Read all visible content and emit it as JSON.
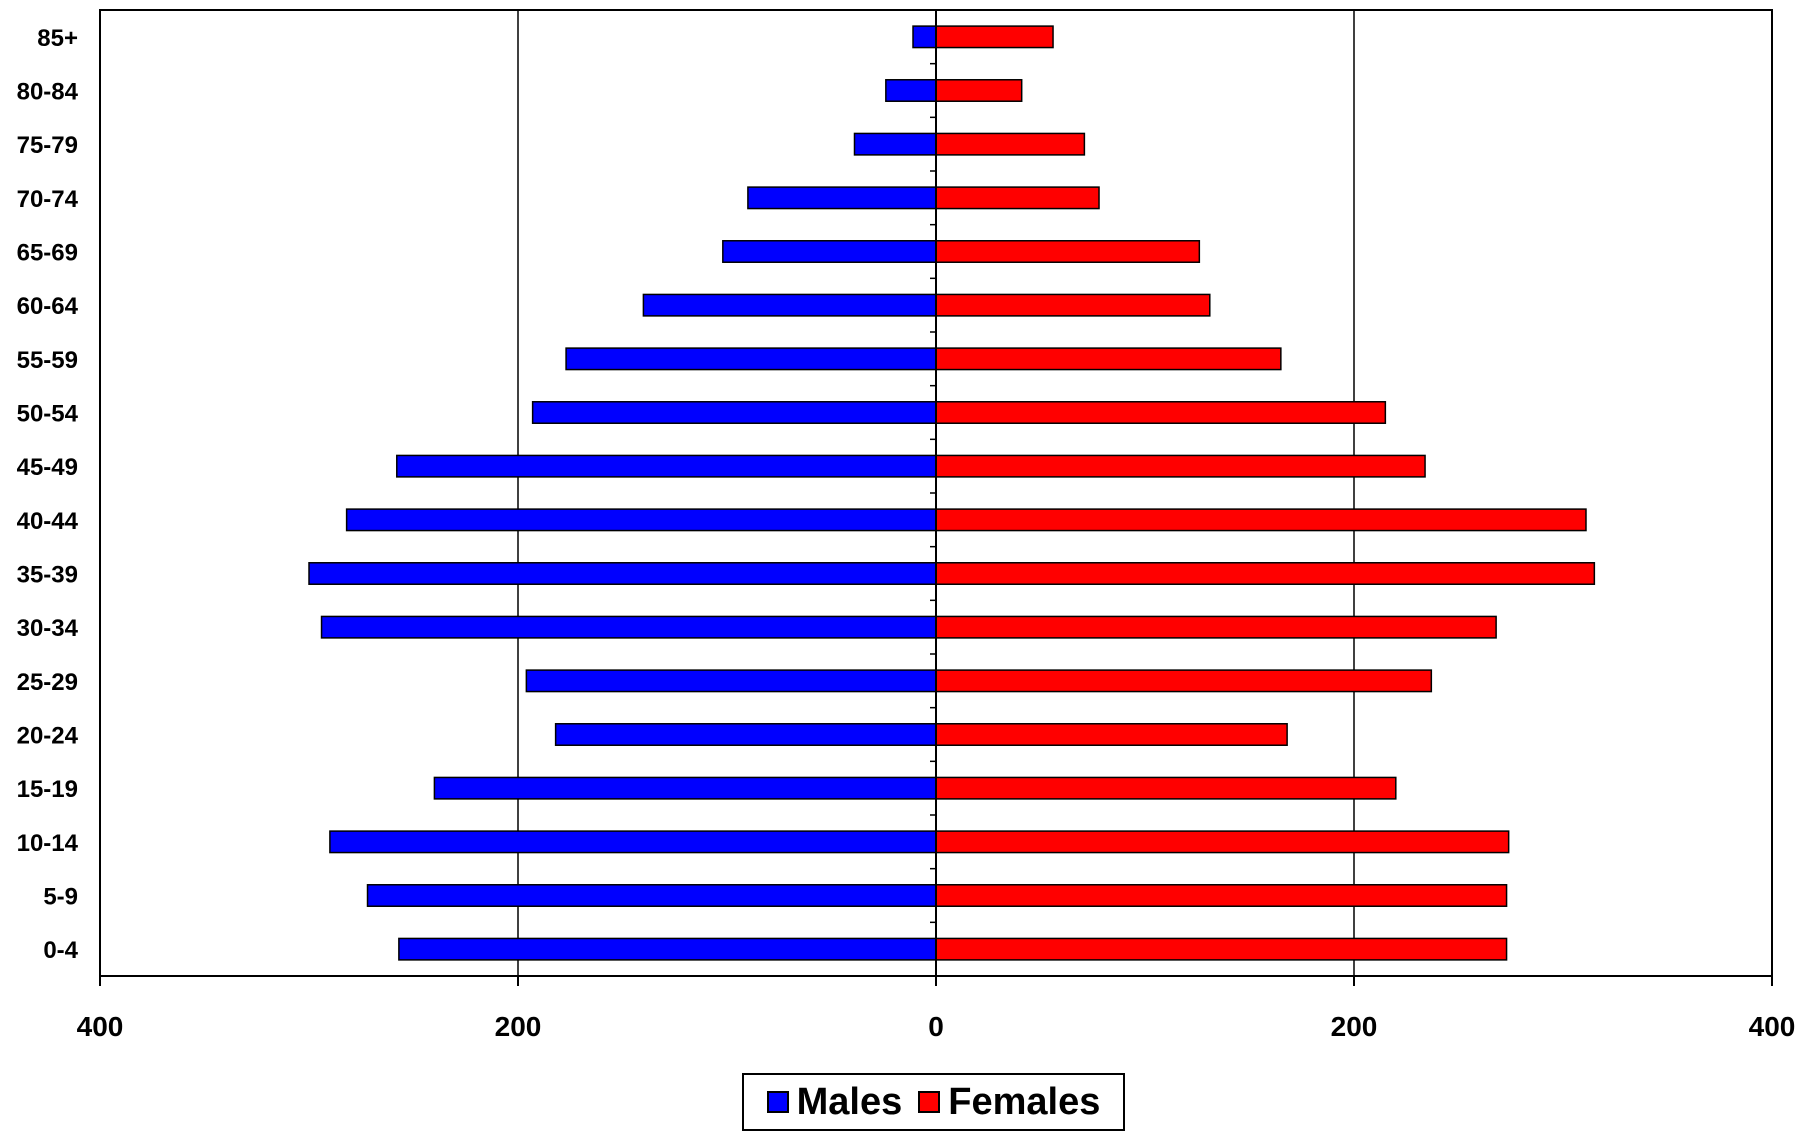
{
  "chart_data": {
    "type": "bar",
    "orientation": "horizontal",
    "layout": "population-pyramid",
    "title": "",
    "xlabel": "",
    "ylabel": "",
    "categories": [
      "85+",
      "80-84",
      "75-79",
      "70-74",
      "65-69",
      "60-64",
      "55-59",
      "50-54",
      "45-49",
      "40-44",
      "35-39",
      "30-34",
      "25-29",
      "20-24",
      "15-19",
      "10-14",
      "5-9",
      "0-4"
    ],
    "series": [
      {
        "name": "Males",
        "color": "#0000ff",
        "values": [
          11,
          24,
          39,
          90,
          102,
          140,
          177,
          193,
          258,
          282,
          300,
          294,
          196,
          182,
          240,
          290,
          272,
          257
        ]
      },
      {
        "name": "Females",
        "color": "#ff0000",
        "values": [
          56,
          41,
          71,
          78,
          126,
          131,
          165,
          215,
          234,
          311,
          315,
          268,
          237,
          168,
          220,
          274,
          273,
          273
        ]
      }
    ],
    "xlim": [
      -400,
      400
    ],
    "xticks": [
      -400,
      -200,
      0,
      200,
      400
    ],
    "xtick_labels": [
      "400",
      "200",
      "0",
      "200",
      "400"
    ],
    "grid": "vertical",
    "legend_position": "bottom-center"
  },
  "legend": {
    "males_label": "Males",
    "females_label": "Females"
  }
}
